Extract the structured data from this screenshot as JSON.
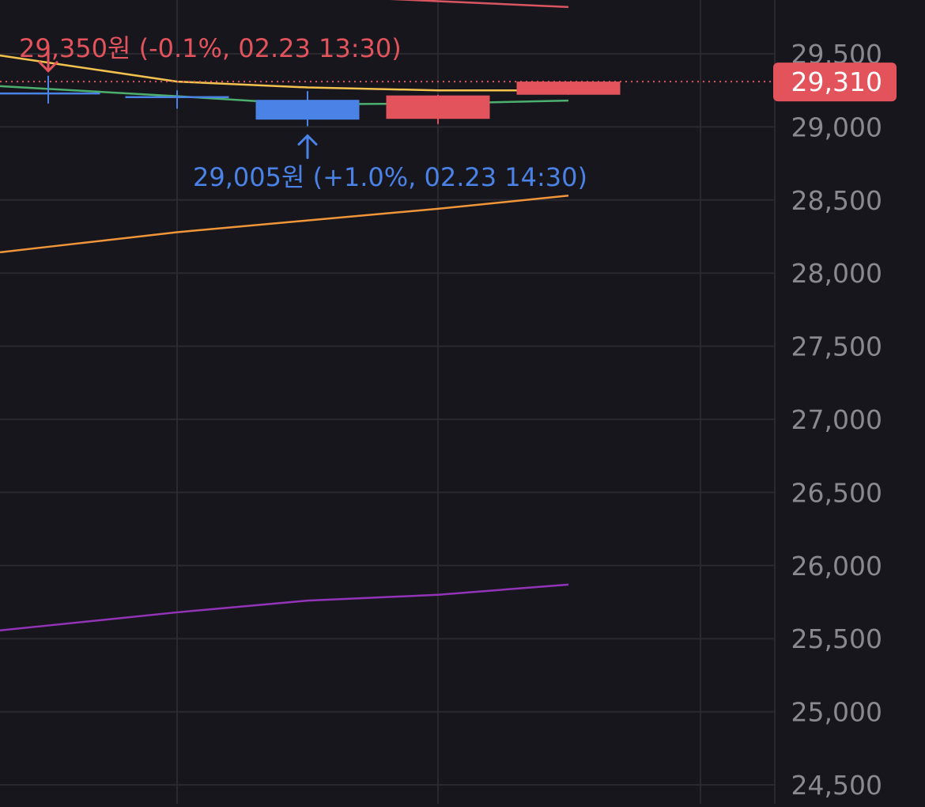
{
  "colors": {
    "background": "#17161d",
    "grid": "#2a2930",
    "axis_text": "#8a8990",
    "up": "#e2535b",
    "down": "#4a82e6",
    "current_price_bg": "#e2535b",
    "current_price_text": "#ffffff"
  },
  "chart_data": {
    "type": "candlestick",
    "y_axis_side": "right",
    "ylim": [
      24500,
      29750
    ],
    "grid": true,
    "y_ticks": [
      {
        "value": 29500,
        "label": "29,500"
      },
      {
        "value": 29000,
        "label": "29,000"
      },
      {
        "value": 28500,
        "label": "28,500"
      },
      {
        "value": 28000,
        "label": "28,000"
      },
      {
        "value": 27500,
        "label": "27,500"
      },
      {
        "value": 27000,
        "label": "27,000"
      },
      {
        "value": 26500,
        "label": "26,500"
      },
      {
        "value": 26000,
        "label": "26,000"
      },
      {
        "value": 25500,
        "label": "25,500"
      },
      {
        "value": 25000,
        "label": "25,000"
      },
      {
        "value": 24500,
        "label": "24,500"
      }
    ],
    "candles": [
      {
        "open": 29230,
        "close": 29230,
        "high": 29350,
        "low": 29160,
        "direction": "down"
      },
      {
        "open": 29205,
        "close": 29205,
        "high": 29250,
        "low": 29125,
        "direction": "down"
      },
      {
        "open": 29185,
        "close": 29050,
        "high": 29245,
        "low": 29005,
        "direction": "down"
      },
      {
        "open": 29055,
        "close": 29215,
        "high": 29220,
        "low": 29020,
        "direction": "up"
      },
      {
        "open": 29220,
        "close": 29310,
        "high": 29310,
        "low": 29220,
        "direction": "up"
      }
    ],
    "moving_averages": [
      {
        "color": "#d95560",
        "values": [
          29990,
          29940,
          29900,
          29860,
          29820
        ]
      },
      {
        "color": "#f2c14e",
        "values": [
          29440,
          29310,
          29270,
          29250,
          29250
        ]
      },
      {
        "color": "#4caf6e",
        "values": [
          29260,
          29210,
          29155,
          29160,
          29180
        ]
      },
      {
        "color": "#f0953a",
        "values": [
          28180,
          28280,
          28360,
          28440,
          28530
        ]
      },
      {
        "color": "#9334b8",
        "values": [
          25590,
          25680,
          25760,
          25800,
          25870
        ]
      }
    ],
    "current_price": {
      "value": 29310,
      "label": "29,310"
    },
    "annotations": [
      {
        "candle_index": 0,
        "kind": "high",
        "label": "29,350원 (-0.1%, 02.23 13:30)",
        "color": "#e2535b"
      },
      {
        "candle_index": 2,
        "kind": "low",
        "label": "29,005원 (+1.0%, 02.23 14:30)",
        "color": "#4a82e6"
      }
    ]
  }
}
